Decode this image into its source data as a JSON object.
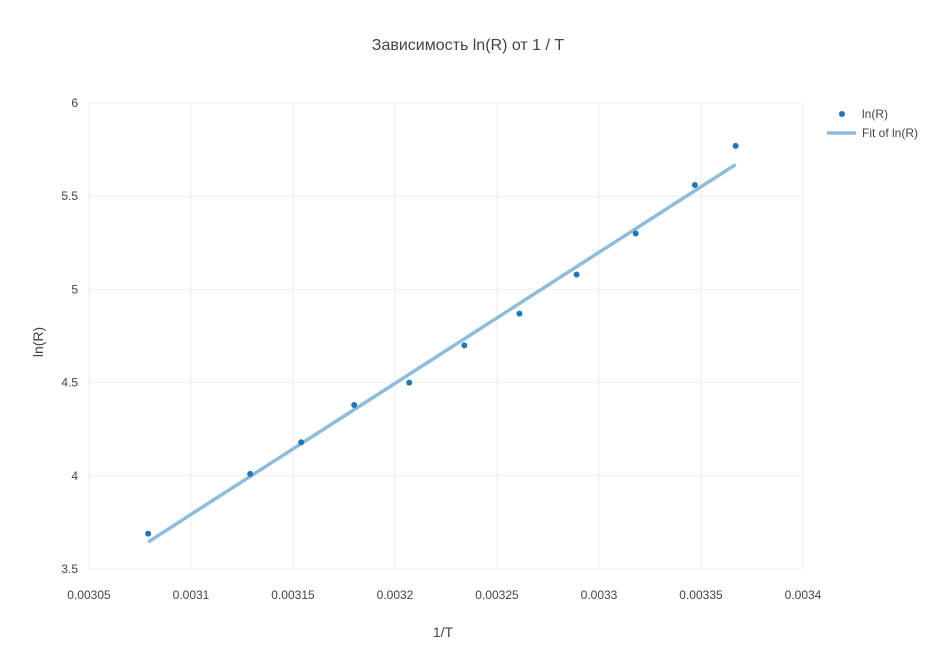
{
  "chart_data": {
    "type": "scatter",
    "title": "Зависимость ln(R) от 1 / T",
    "xlabel": "1/T",
    "ylabel": "ln(R)",
    "xlim": [
      0.00305,
      0.0034
    ],
    "ylim": [
      3.5,
      6
    ],
    "x_ticks": [
      0.00305,
      0.0031,
      0.00315,
      0.0032,
      0.00325,
      0.0033,
      0.00335,
      0.0034
    ],
    "x_tick_labels": [
      "0.00305",
      "0.0031",
      "0.00315",
      "0.0032",
      "0.00325",
      "0.0033",
      "0.00335",
      "0.0034"
    ],
    "y_ticks": [
      3.5,
      4,
      4.5,
      5,
      5.5,
      6
    ],
    "y_tick_labels": [
      "3.5",
      "4",
      "4.5",
      "5",
      "5.5",
      "6"
    ],
    "grid": true,
    "legend_position": "top-right",
    "series": [
      {
        "name": "ln(R)",
        "kind": "markers",
        "color": "#1f77b4",
        "x": [
          0.003079,
          0.003129,
          0.003154,
          0.00318,
          0.003207,
          0.003234,
          0.003261,
          0.003289,
          0.003318,
          0.003347,
          0.003367
        ],
        "y": [
          3.69,
          4.01,
          4.18,
          4.38,
          4.5,
          4.7,
          4.87,
          5.08,
          5.3,
          5.56,
          5.77
        ]
      },
      {
        "name": "Fit of ln(R)",
        "kind": "line",
        "color": "#8fbcdb",
        "x": [
          0.003079,
          0.003367
        ],
        "y": [
          3.645,
          5.67
        ]
      }
    ]
  }
}
